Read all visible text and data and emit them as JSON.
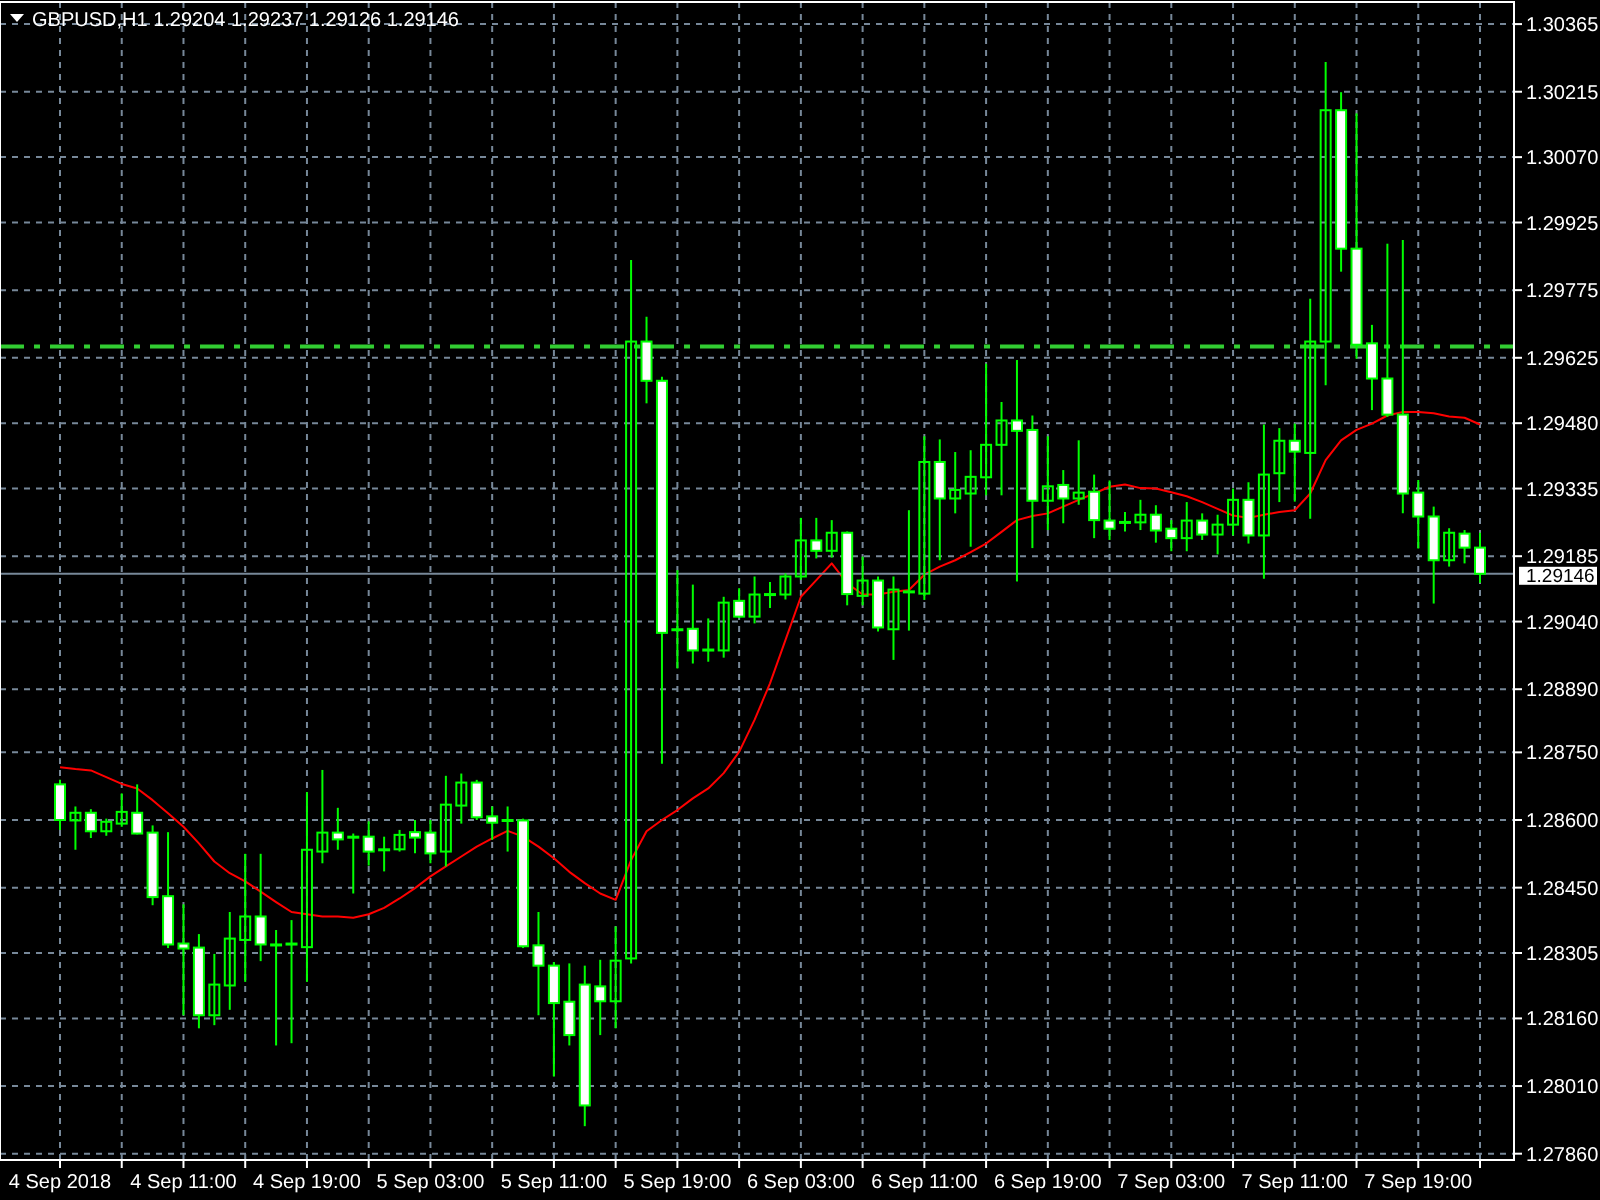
{
  "chart_data": {
    "type": "candlestick",
    "title": "GBPUSD,H1  1.29204 1.29237 1.29126 1.29146",
    "categories": [
      "4 Sep 2018",
      null,
      null,
      null,
      null,
      null,
      null,
      null,
      "4 Sep 11:00",
      null,
      null,
      null,
      null,
      null,
      null,
      null,
      "4 Sep 19:00",
      null,
      null,
      null,
      null,
      null,
      null,
      null,
      "5 Sep 03:00",
      null,
      null,
      null,
      null,
      null,
      null,
      null,
      "5 Sep 11:00",
      null,
      null,
      null,
      null,
      null,
      null,
      null,
      "5 Sep 19:00",
      null,
      null,
      null,
      null,
      null,
      null,
      null,
      "6 Sep 03:00",
      null,
      null,
      null,
      null,
      null,
      null,
      null,
      "6 Sep 11:00",
      null,
      null,
      null,
      null,
      null,
      null,
      null,
      "6 Sep 19:00",
      null,
      null,
      null,
      null,
      null,
      null,
      null,
      "7 Sep 03:00",
      null,
      null,
      null,
      null,
      null,
      null,
      null,
      "7 Sep 11:00",
      null,
      null,
      null,
      null,
      null,
      null,
      null,
      "7 Sep 19:00",
      null,
      null,
      null,
      null
    ],
    "ohlc": [
      [
        1.28679,
        1.28689,
        1.28578,
        1.286
      ],
      [
        1.28599,
        1.2863,
        1.28534,
        1.28616
      ],
      [
        1.28616,
        1.28624,
        1.2856,
        1.28575
      ],
      [
        1.28575,
        1.28603,
        1.28565,
        1.28596
      ],
      [
        1.28592,
        1.28659,
        1.28585,
        1.28618
      ],
      [
        1.28616,
        1.28679,
        1.28568,
        1.2857
      ],
      [
        1.28572,
        1.28588,
        1.28411,
        1.28429
      ],
      [
        1.28431,
        1.28573,
        1.28316,
        1.28324
      ],
      [
        1.28326,
        1.28413,
        1.28167,
        1.28315
      ],
      [
        1.28317,
        1.28347,
        1.28138,
        1.28167
      ],
      [
        1.28167,
        1.28303,
        1.28145,
        1.28235
      ],
      [
        1.28233,
        1.28396,
        1.28179,
        1.28337
      ],
      [
        1.28334,
        1.28525,
        1.28241,
        1.28386
      ],
      [
        1.28386,
        1.28525,
        1.28287,
        1.28324
      ],
      [
        1.28318,
        1.28356,
        1.281,
        1.28324
      ],
      [
        1.28326,
        1.28378,
        1.28105,
        1.28326
      ],
      [
        1.28318,
        1.28662,
        1.28241,
        1.28534
      ],
      [
        1.2853,
        1.28711,
        1.28504,
        1.28572
      ],
      [
        1.28572,
        1.28627,
        1.28534,
        1.28557
      ],
      [
        1.28561,
        1.2857,
        1.28437,
        1.28563
      ],
      [
        1.28563,
        1.28597,
        1.28499,
        1.2853
      ],
      [
        1.28535,
        1.28563,
        1.28486,
        1.28535
      ],
      [
        1.28535,
        1.28578,
        1.2853,
        1.28567
      ],
      [
        1.28573,
        1.286,
        1.28526,
        1.28561
      ],
      [
        1.28572,
        1.286,
        1.28504,
        1.28526
      ],
      [
        1.2853,
        1.28698,
        1.28497,
        1.28634
      ],
      [
        1.28632,
        1.28703,
        1.28592,
        1.28683
      ],
      [
        1.28683,
        1.28689,
        1.286,
        1.28606
      ],
      [
        1.28608,
        1.2863,
        1.28556,
        1.28594
      ],
      [
        1.286,
        1.2863,
        1.2853,
        1.286
      ],
      [
        1.28599,
        1.28603,
        1.28316,
        1.2832
      ],
      [
        1.28322,
        1.28396,
        1.28167,
        1.28277
      ],
      [
        1.28277,
        1.28285,
        1.28031,
        1.28194
      ],
      [
        1.28197,
        1.28282,
        1.281,
        1.28123
      ],
      [
        1.28235,
        1.28277,
        1.27921,
        1.27967
      ],
      [
        1.28231,
        1.2829,
        1.28123,
        1.28198
      ],
      [
        1.28198,
        1.28364,
        1.28138,
        1.28288
      ],
      [
        1.28293,
        1.29842,
        1.28282,
        1.29661
      ],
      [
        1.29661,
        1.29716,
        1.29524,
        1.29574
      ],
      [
        1.29574,
        1.29583,
        1.28725,
        1.29015
      ],
      [
        1.29023,
        1.29154,
        1.28936,
        1.29023
      ],
      [
        1.29024,
        1.29122,
        1.28947,
        1.28976
      ],
      [
        1.28978,
        1.29047,
        1.28951,
        1.28978
      ],
      [
        1.28976,
        1.29095,
        1.2896,
        1.29082
      ],
      [
        1.29086,
        1.29114,
        1.29048,
        1.29051
      ],
      [
        1.29051,
        1.2914,
        1.29036,
        1.291
      ],
      [
        1.29101,
        1.29128,
        1.2907,
        1.29101
      ],
      [
        1.291,
        1.29147,
        1.29089,
        1.2914
      ],
      [
        1.2914,
        1.2927,
        1.29133,
        1.2922
      ],
      [
        1.2922,
        1.2927,
        1.2918,
        1.29197
      ],
      [
        1.29197,
        1.29265,
        1.29182,
        1.29237
      ],
      [
        1.29237,
        1.2924,
        1.29076,
        1.29101
      ],
      [
        1.29097,
        1.29184,
        1.29076,
        1.29131
      ],
      [
        1.29131,
        1.2914,
        1.29018,
        1.29027
      ],
      [
        1.29023,
        1.2914,
        1.28955,
        1.29111
      ],
      [
        1.29107,
        1.29287,
        1.2902,
        1.29107
      ],
      [
        1.29102,
        1.29451,
        1.29088,
        1.29394
      ],
      [
        1.29394,
        1.29444,
        1.29176,
        1.29313
      ],
      [
        1.29313,
        1.29416,
        1.2928,
        1.29332
      ],
      [
        1.29324,
        1.2942,
        1.29206,
        1.29361
      ],
      [
        1.2936,
        1.29612,
        1.2932,
        1.29432
      ],
      [
        1.29432,
        1.29527,
        1.2932,
        1.29486
      ],
      [
        1.29486,
        1.2962,
        1.29129,
        1.29463
      ],
      [
        1.29465,
        1.29497,
        1.29203,
        1.29308
      ],
      [
        1.29308,
        1.29451,
        1.29243,
        1.2934
      ],
      [
        1.29343,
        1.29376,
        1.29258,
        1.29313
      ],
      [
        1.29313,
        1.29442,
        1.29299,
        1.29326
      ],
      [
        1.29328,
        1.29366,
        1.29225,
        1.29265
      ],
      [
        1.29264,
        1.29353,
        1.29221,
        1.29246
      ],
      [
        1.29261,
        1.29283,
        1.2924,
        1.29261
      ],
      [
        1.2926,
        1.2931,
        1.29243,
        1.29277
      ],
      [
        1.29277,
        1.29298,
        1.29215,
        1.29242
      ],
      [
        1.29246,
        1.29265,
        1.29196,
        1.29225
      ],
      [
        1.29225,
        1.29305,
        1.29196,
        1.29264
      ],
      [
        1.29264,
        1.2928,
        1.29221,
        1.29233
      ],
      [
        1.29233,
        1.29277,
        1.29189,
        1.29255
      ],
      [
        1.29255,
        1.29335,
        1.29231,
        1.2931
      ],
      [
        1.2931,
        1.29349,
        1.29213,
        1.29231
      ],
      [
        1.29231,
        1.29477,
        1.29135,
        1.29366
      ],
      [
        1.29369,
        1.29469,
        1.29305,
        1.29441
      ],
      [
        1.29441,
        1.29479,
        1.29306,
        1.29417
      ],
      [
        1.29414,
        1.29756,
        1.29268,
        1.29661
      ],
      [
        1.29661,
        1.30281,
        1.29564,
        1.30174
      ],
      [
        1.30174,
        1.30214,
        1.29816,
        1.29867
      ],
      [
        1.29867,
        1.30167,
        1.29623,
        1.29654
      ],
      [
        1.29657,
        1.29698,
        1.29509,
        1.29579
      ],
      [
        1.29579,
        1.29878,
        1.29494,
        1.29499
      ],
      [
        1.29499,
        1.29886,
        1.2928,
        1.29324
      ],
      [
        1.29326,
        1.29354,
        1.29202,
        1.29273
      ],
      [
        1.29273,
        1.29295,
        1.2908,
        1.29176
      ],
      [
        1.29176,
        1.29247,
        1.29162,
        1.29237
      ],
      [
        1.29235,
        1.29243,
        1.29169,
        1.29204
      ],
      [
        1.29204,
        1.29237,
        1.29126,
        1.29146
      ]
    ],
    "series": [
      {
        "type": "line",
        "color": "#ff0000",
        "values": [
          1.28717,
          1.28713,
          1.2871,
          1.28695,
          1.2868,
          1.2867,
          1.28644,
          1.28615,
          1.28585,
          1.28548,
          1.28508,
          1.28482,
          1.28464,
          1.28441,
          1.28418,
          1.28396,
          1.28391,
          1.28386,
          1.28386,
          1.28383,
          1.28391,
          1.28405,
          1.28426,
          1.28449,
          1.28475,
          1.28497,
          1.28519,
          1.28541,
          1.28559,
          1.28576,
          1.28563,
          1.28541,
          1.28515,
          1.28485,
          1.2846,
          1.28437,
          1.28423,
          1.28511,
          1.28575,
          1.286,
          1.28622,
          1.28648,
          1.2867,
          1.28704,
          1.28751,
          1.28822,
          1.28903,
          1.28999,
          1.29095,
          1.29132,
          1.29169,
          1.29125,
          1.291,
          1.291,
          1.29106,
          1.2911,
          1.29144,
          1.29162,
          1.29176,
          1.29194,
          1.29213,
          1.29239,
          1.29265,
          1.29274,
          1.2928,
          1.29295,
          1.2931,
          1.29324,
          1.29339,
          1.29344,
          1.29336,
          1.29335,
          1.29327,
          1.29318,
          1.29305,
          1.2929,
          1.29275,
          1.2927,
          1.29277,
          1.29283,
          1.29287,
          1.29324,
          1.29398,
          1.29442,
          1.29465,
          1.29479,
          1.29497,
          1.29505,
          1.29505,
          1.29502,
          1.29495,
          1.29492,
          1.29477
        ]
      }
    ],
    "ylim": [
      1.27846,
      1.30414
    ],
    "yticks": [
      {
        "value": 1.30365,
        "label": "1.30365"
      },
      {
        "value": 1.30215,
        "label": "1.30215"
      },
      {
        "value": 1.3007,
        "label": "1.30070"
      },
      {
        "value": 1.29925,
        "label": "1.29925"
      },
      {
        "value": 1.29775,
        "label": "1.29775"
      },
      {
        "value": 1.29625,
        "label": "1.29625"
      },
      {
        "value": 1.2948,
        "label": "1.29480"
      },
      {
        "value": 1.29335,
        "label": "1.29335"
      },
      {
        "value": 1.29185,
        "label": "1.29185"
      },
      {
        "value": 1.2904,
        "label": "1.29040"
      },
      {
        "value": 1.2889,
        "label": "1.28890"
      },
      {
        "value": 1.2875,
        "label": "1.28750"
      },
      {
        "value": 1.286,
        "label": "1.28600"
      },
      {
        "value": 1.2845,
        "label": "1.28450"
      },
      {
        "value": 1.28305,
        "label": "1.28305"
      },
      {
        "value": 1.2816,
        "label": "1.28160"
      },
      {
        "value": 1.2801,
        "label": "1.28010"
      },
      {
        "value": 1.2786,
        "label": "1.27860"
      }
    ],
    "ref_lines": [
      {
        "axis": "y",
        "value": 1.2965,
        "color": "#32cd32",
        "line_style": "dashed"
      },
      {
        "axis": "y",
        "value": 1.29146,
        "label": "1.29146",
        "color": "#778899"
      }
    ],
    "grid": true
  }
}
